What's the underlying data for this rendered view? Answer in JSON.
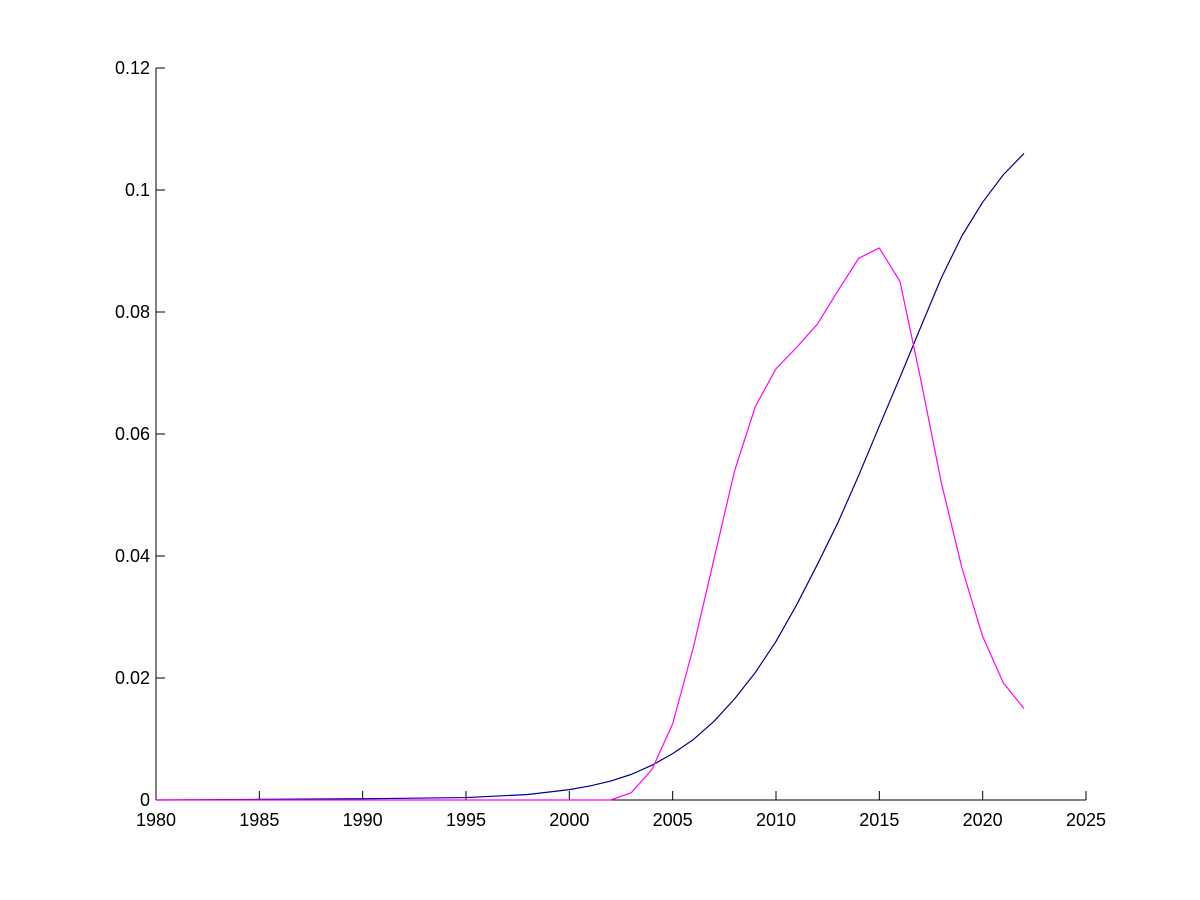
{
  "chart_data": {
    "type": "line",
    "title": "",
    "xlabel": "",
    "ylabel": "",
    "xlim": [
      1980,
      2025
    ],
    "ylim": [
      0,
      0.12
    ],
    "grid": false,
    "legend": "none",
    "x_ticks": [
      "1980",
      "1985",
      "1990",
      "1995",
      "2000",
      "2005",
      "2010",
      "2015",
      "2020",
      "2025"
    ],
    "y_ticks": [
      "0",
      "0.02",
      "0.04",
      "0.06",
      "0.08",
      "0.1",
      "0.12"
    ],
    "series": [
      {
        "color": "#00008B",
        "x": [
          1980,
          1985,
          1990,
          1995,
          1998,
          2000,
          2001,
          2002,
          2003,
          2004,
          2005,
          2006,
          2007,
          2008,
          2009,
          2010,
          2011,
          2012,
          2013,
          2014,
          2015,
          2016,
          2017,
          2018,
          2019,
          2020,
          2021,
          2022
        ],
        "y": [
          0,
          0.0001,
          0.0002,
          0.0004,
          0.0009,
          0.0017,
          0.0023,
          0.0031,
          0.0042,
          0.0057,
          0.0076,
          0.0099,
          0.0129,
          0.0166,
          0.0209,
          0.026,
          0.032,
          0.0386,
          0.0455,
          0.0532,
          0.0613,
          0.0693,
          0.0775,
          0.0856,
          0.0925,
          0.098,
          0.1025,
          0.106
        ]
      },
      {
        "color": "#FF00FF",
        "x": [
          1980,
          1985,
          1990,
          1995,
          2000,
          2002,
          2003,
          2004,
          2005,
          2006,
          2007,
          2008,
          2009,
          2010,
          2011,
          2012,
          2013,
          2014,
          2015,
          2016,
          2017,
          2018,
          2019,
          2020,
          2021,
          2022
        ],
        "y": [
          0,
          0,
          0,
          0,
          0,
          0,
          0.0012,
          0.005,
          0.0125,
          0.025,
          0.0395,
          0.054,
          0.0645,
          0.0707,
          0.0742,
          0.078,
          0.0835,
          0.0888,
          0.0905,
          0.085,
          0.069,
          0.052,
          0.038,
          0.0268,
          0.0192,
          0.015
        ]
      }
    ]
  }
}
